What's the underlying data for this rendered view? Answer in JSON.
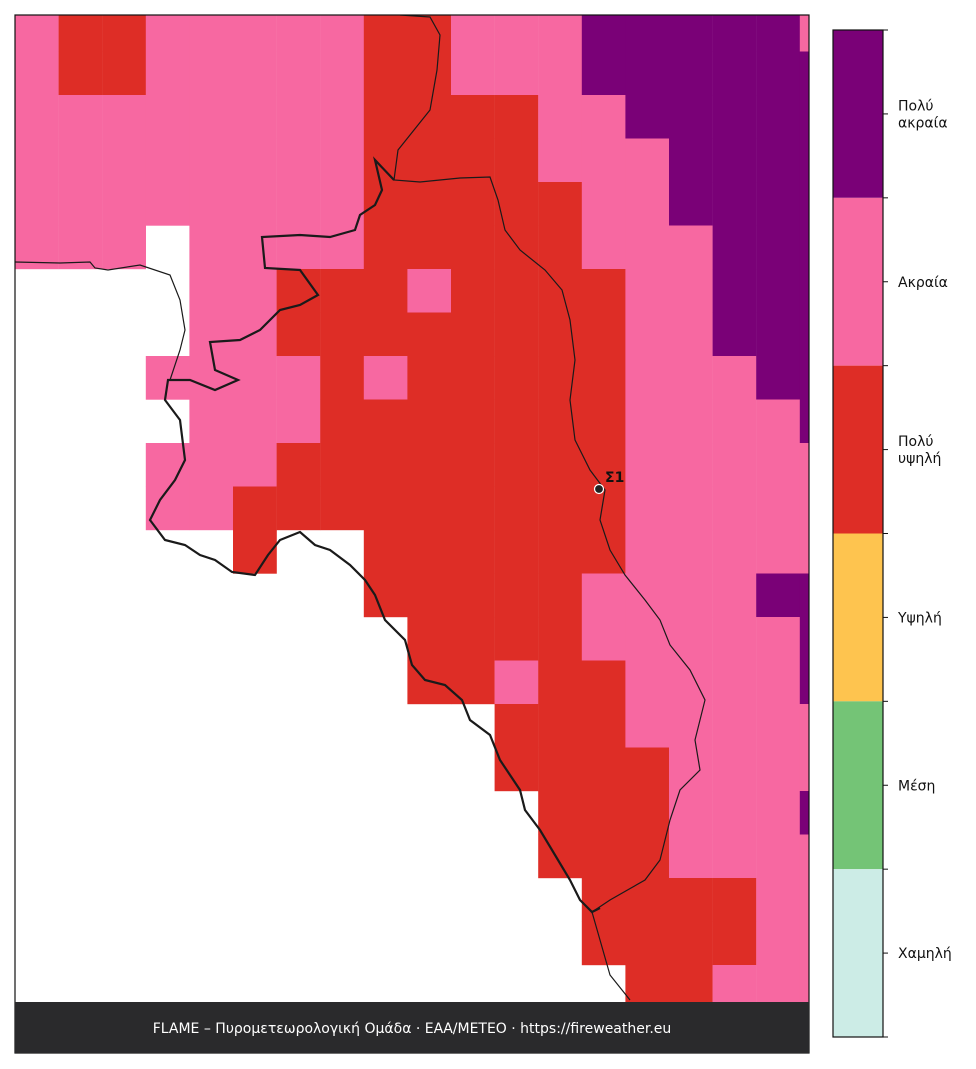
{
  "map": {
    "legend": {
      "classes": [
        {
          "label": [
            "Πολύ",
            "ακραία"
          ],
          "color": "#7a0177"
        },
        {
          "label": [
            "Ακραία"
          ],
          "color": "#f768a1"
        },
        {
          "label": [
            "Πολύ",
            "υψηλή"
          ],
          "color": "#de2d26"
        },
        {
          "label": [
            "Υψηλή"
          ],
          "color": "#fec44f"
        },
        {
          "label": [
            "Μέση"
          ],
          "color": "#74c476"
        },
        {
          "label": [
            "Χαμηλή"
          ],
          "color": "#ccece6"
        }
      ]
    },
    "stations": [
      {
        "label": "Σ1"
      }
    ],
    "footer": "FLAME – Πυρομετεωρολογική Ομάδα · ΕΑΑ/ΜΕΤΕΟ · https://fireweather.eu"
  }
}
